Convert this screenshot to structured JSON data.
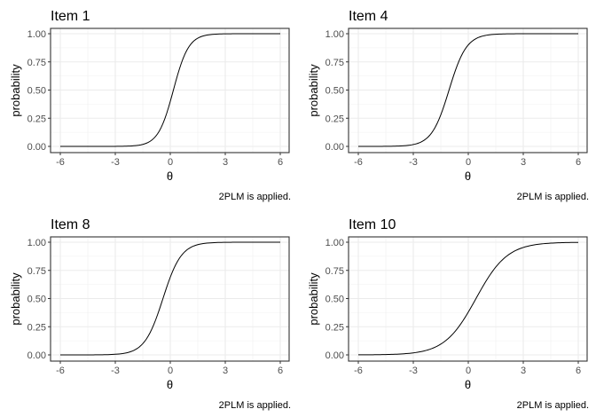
{
  "chart_data": [
    {
      "type": "line",
      "title": "Item 1",
      "xlabel": "θ",
      "ylabel": "probability",
      "caption": "2PLM is applied.",
      "xlim": [
        -6,
        6
      ],
      "ylim": [
        0,
        1
      ],
      "xticks": [
        "-6",
        "-3",
        "0",
        "3",
        "6"
      ],
      "yticks": [
        "0.00",
        "0.25",
        "0.50",
        "0.75",
        "1.00"
      ],
      "grid": true,
      "model": "2PLM",
      "a": 2.4,
      "b": 0.17
    },
    {
      "type": "line",
      "title": "Item 4",
      "xlabel": "θ",
      "ylabel": "probability",
      "caption": "2PLM is applied.",
      "xlim": [
        -6,
        6
      ],
      "ylim": [
        0,
        1
      ],
      "xticks": [
        "-6",
        "-3",
        "0",
        "3",
        "6"
      ],
      "yticks": [
        "0.00",
        "0.25",
        "0.50",
        "0.75",
        "1.00"
      ],
      "grid": true,
      "model": "2PLM",
      "a": 2.1,
      "b": -1.05
    },
    {
      "type": "line",
      "title": "Item 8",
      "xlabel": "θ",
      "ylabel": "probability",
      "caption": "2PLM is applied.",
      "xlim": [
        -6,
        6
      ],
      "ylim": [
        0,
        1
      ],
      "xticks": [
        "-6",
        "-3",
        "0",
        "3",
        "6"
      ],
      "yticks": [
        "0.00",
        "0.25",
        "0.50",
        "0.75",
        "1.00"
      ],
      "grid": true,
      "model": "2PLM",
      "a": 2.0,
      "b": -0.4
    },
    {
      "type": "line",
      "title": "Item 10",
      "xlabel": "θ",
      "ylabel": "probability",
      "caption": "2PLM is applied.",
      "xlim": [
        -6,
        6
      ],
      "ylim": [
        0,
        1
      ],
      "xticks": [
        "-6",
        "-3",
        "0",
        "3",
        "6"
      ],
      "yticks": [
        "0.00",
        "0.25",
        "0.50",
        "0.75",
        "1.00"
      ],
      "grid": true,
      "model": "2PLM",
      "a": 1.17,
      "b": 0.42
    }
  ]
}
